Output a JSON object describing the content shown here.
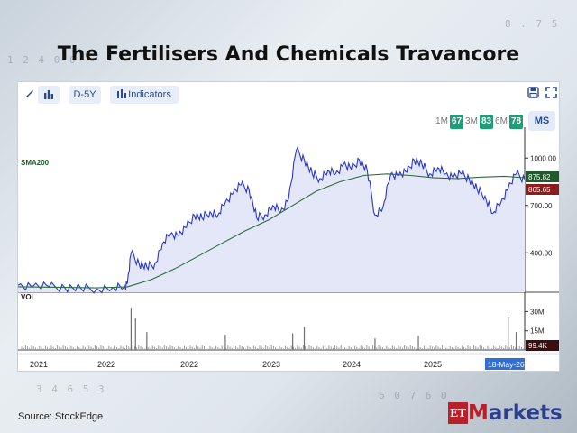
{
  "page": {
    "title": "The Fertilisers And Chemicals Travancore",
    "source": "Source:  StockEdge",
    "logo": {
      "et": "ET",
      "markets_m": "M",
      "markets_rest": "arkets"
    }
  },
  "toolbar": {
    "draw_icon": "pencil-icon",
    "chart_type_icon": "bar-chart-icon",
    "interval_label": "D-5Y",
    "indicators_label": "Indicators",
    "save_icon": "save-icon",
    "expand_icon": "expand-icon"
  },
  "ranges": {
    "items": [
      {
        "label": "1M",
        "badge": "67"
      },
      {
        "label": "3M",
        "badge": "83"
      },
      {
        "label": "6M",
        "badge": "78"
      }
    ],
    "ms_label": "MS"
  },
  "colors": {
    "price_line": "#2a37c9",
    "price_fill": "#e4e7f7",
    "sma_line": "#2e6b3e",
    "sma_badge": "#205a2a",
    "price_badge": "#8b1d1d",
    "volume": "#9a9a9a",
    "date_badge": "#2f6fd6",
    "vol_badge": "#3a0f12"
  },
  "chart_data": {
    "type": "line",
    "indicator_label": "SMA200",
    "volume_label": "VOL",
    "x_ticks": [
      "2021",
      "2022",
      "2022",
      "2023",
      "2024",
      "2025",
      "18-May-26"
    ],
    "y_ticks": [
      "1000.00",
      "700.00",
      "400.00"
    ],
    "volume_ticks": [
      "30M",
      "15M"
    ],
    "last_sma": "875.82",
    "last_price": "865.65",
    "last_volume": "99.4K",
    "ylim": [
      150,
      1150
    ],
    "volume_ylim": [
      0,
      38
    ],
    "price": {
      "x": [
        "2021-01-01",
        "2021-03-01",
        "2021-05-01",
        "2021-07-01",
        "2021-09-01",
        "2021-11-01",
        "2022-01-01",
        "2022-02-15",
        "2022-03-01",
        "2022-03-15",
        "2022-04-15",
        "2022-05-15",
        "2022-06-15",
        "2022-07-15",
        "2022-08-15",
        "2022-09-15",
        "2022-10-15",
        "2022-11-15",
        "2022-12-15",
        "2023-01-15",
        "2023-02-15",
        "2023-03-15",
        "2023-04-15",
        "2023-05-15",
        "2023-06-15",
        "2023-07-15",
        "2023-08-15",
        "2023-09-15",
        "2023-10-15",
        "2023-11-15",
        "2023-12-15",
        "2024-01-15",
        "2024-02-15",
        "2024-03-15",
        "2024-04-15",
        "2024-05-15",
        "2024-06-15",
        "2024-07-15",
        "2024-08-15",
        "2024-09-15",
        "2024-10-15",
        "2024-11-15",
        "2024-12-15",
        "2025-01-15",
        "2025-02-15",
        "2025-03-15",
        "2025-04-15",
        "2025-05-15",
        "2025-06-15",
        "2025-07-15",
        "2025-08-15",
        "2025-09-15",
        "2025-10-15",
        "2025-11-15",
        "2025-12-15",
        "2026-01-15",
        "2026-02-15",
        "2026-03-15",
        "2026-04-15",
        "2026-05-18"
      ],
      "values": [
        195,
        190,
        185,
        180,
        175,
        172,
        178,
        180,
        210,
        400,
        330,
        310,
        330,
        460,
        520,
        510,
        560,
        640,
        620,
        660,
        640,
        720,
        780,
        830,
        800,
        620,
        640,
        700,
        660,
        740,
        1050,
        990,
        900,
        870,
        920,
        900,
        960,
        930,
        990,
        920,
        640,
        690,
        900,
        890,
        910,
        990,
        960,
        900,
        940,
        900,
        880,
        900,
        870,
        800,
        760,
        650,
        720,
        810,
        900,
        865.65
      ]
    },
    "sma200": {
      "x": [
        "2021-01-01",
        "2021-06-01",
        "2021-11-01",
        "2022-03-01",
        "2022-06-01",
        "2022-09-01",
        "2022-12-01",
        "2023-03-01",
        "2023-06-01",
        "2023-09-01",
        "2023-12-01",
        "2024-03-01",
        "2024-06-01",
        "2024-09-01",
        "2024-12-01",
        "2025-03-01",
        "2025-06-01",
        "2025-09-01",
        "2025-12-01",
        "2026-03-01",
        "2026-05-18"
      ],
      "values": [
        185,
        182,
        178,
        185,
        230,
        300,
        380,
        460,
        540,
        610,
        700,
        790,
        850,
        890,
        900,
        890,
        875,
        870,
        880,
        885,
        875.82
      ]
    },
    "volume_spikes": {
      "x": [
        "2022-03-15",
        "2022-04-01",
        "2022-05-15",
        "2023-03-15",
        "2023-12-01",
        "2024-01-15",
        "2024-10-15",
        "2025-04-01",
        "2026-03-15",
        "2026-04-15"
      ],
      "values": [
        33,
        25,
        14,
        12,
        13,
        18,
        9,
        11,
        26,
        14
      ]
    },
    "base_volume": 3
  }
}
